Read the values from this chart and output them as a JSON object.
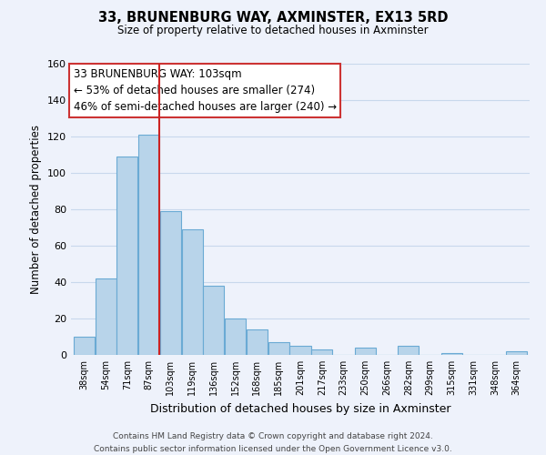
{
  "title": "33, BRUNENBURG WAY, AXMINSTER, EX13 5RD",
  "subtitle": "Size of property relative to detached houses in Axminster",
  "xlabel": "Distribution of detached houses by size in Axminster",
  "ylabel": "Number of detached properties",
  "bar_color": "#b8d4ea",
  "bar_edge_color": "#6aaad4",
  "vline_color": "#cc2222",
  "bin_labels": [
    "38sqm",
    "54sqm",
    "71sqm",
    "87sqm",
    "103sqm",
    "119sqm",
    "136sqm",
    "152sqm",
    "168sqm",
    "185sqm",
    "201sqm",
    "217sqm",
    "233sqm",
    "250sqm",
    "266sqm",
    "282sqm",
    "299sqm",
    "315sqm",
    "331sqm",
    "348sqm",
    "364sqm"
  ],
  "bar_heights": [
    10,
    42,
    109,
    121,
    79,
    69,
    38,
    20,
    14,
    7,
    5,
    3,
    0,
    4,
    0,
    5,
    0,
    1,
    0,
    0,
    2
  ],
  "ylim": [
    0,
    160
  ],
  "yticks": [
    0,
    20,
    40,
    60,
    80,
    100,
    120,
    140,
    160
  ],
  "vline_x": 3.5,
  "annotation_line1": "33 BRUNENBURG WAY: 103sqm",
  "annotation_line2": "← 53% of detached houses are smaller (274)",
  "annotation_line3": "46% of semi-detached houses are larger (240) →",
  "footer_line1": "Contains HM Land Registry data © Crown copyright and database right 2024.",
  "footer_line2": "Contains public sector information licensed under the Open Government Licence v3.0.",
  "grid_color": "#c8d8ec",
  "background_color": "#eef2fb"
}
